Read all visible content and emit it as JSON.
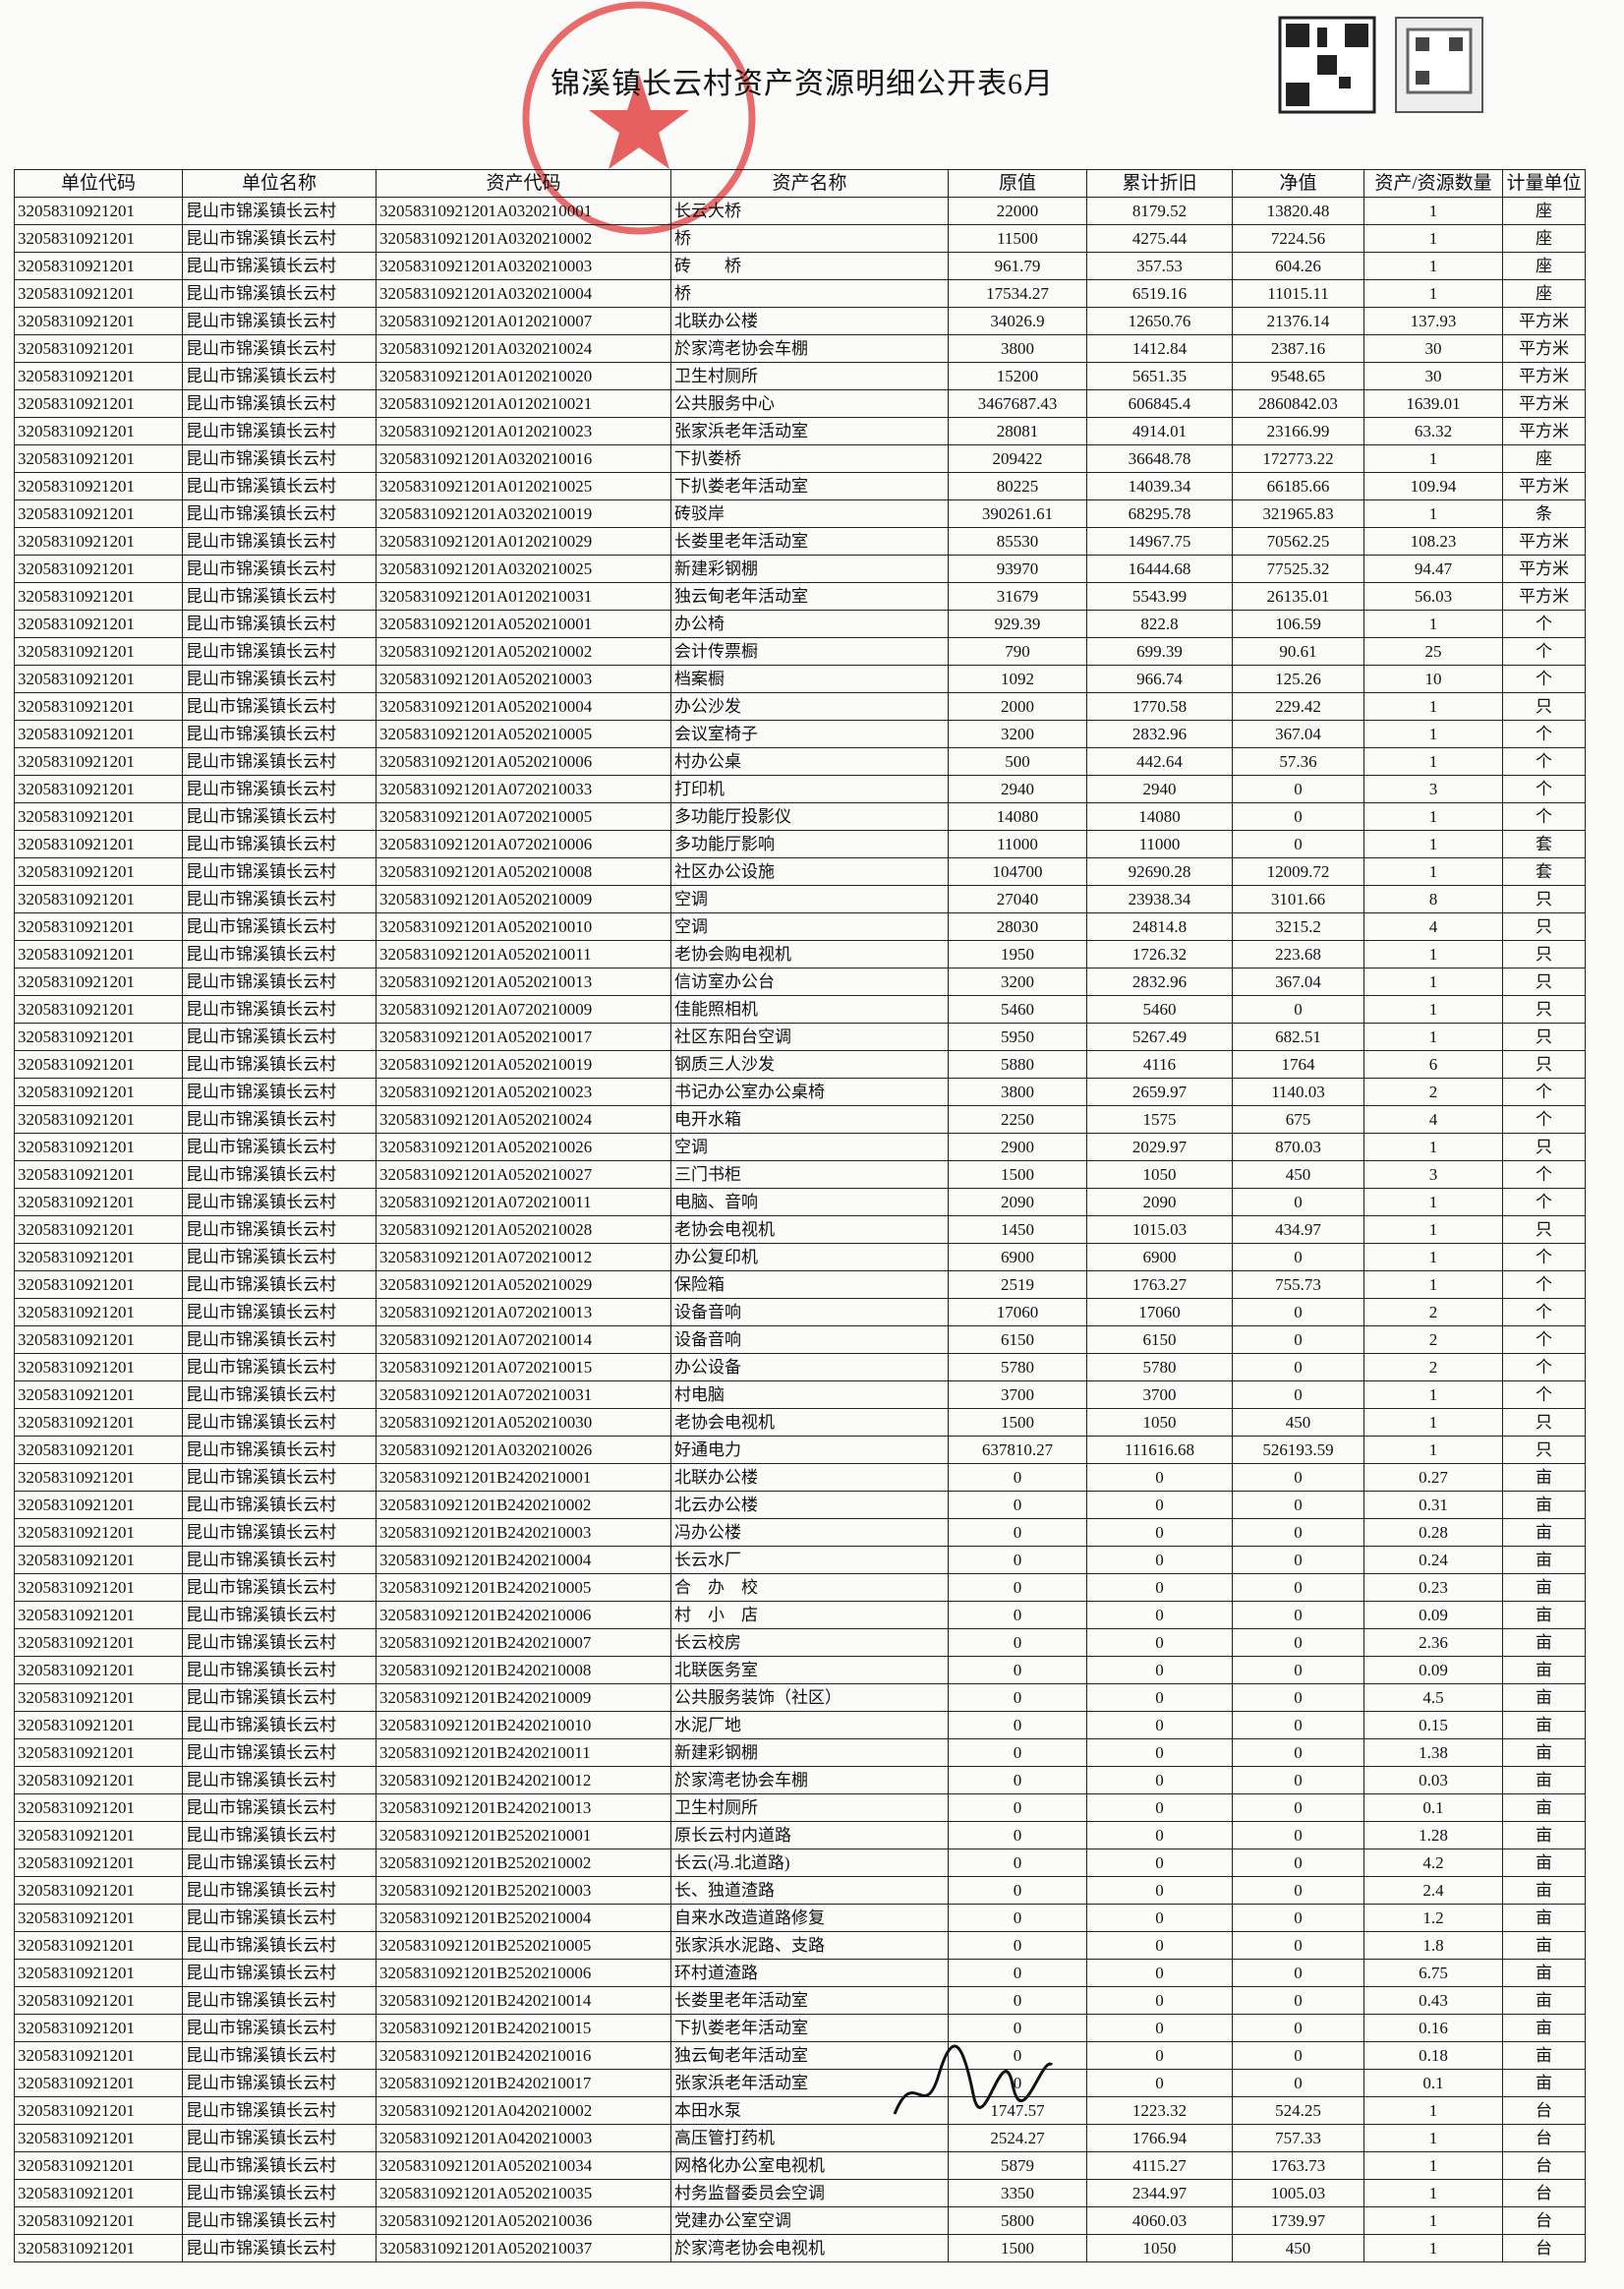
{
  "title": "锦溪镇长云村资产资源明细公开表6月",
  "table": {
    "headers": [
      "单位代码",
      "单位名称",
      "资产代码",
      "资产名称",
      "原值",
      "累计折旧",
      "净值",
      "资产/资源数量",
      "计量单位"
    ],
    "rows": [
      [
        "32058310921201",
        "昆山市锦溪镇长云村",
        "32058310921201A0320210001",
        "长云大桥",
        22000,
        8179.52,
        13820.48,
        1,
        "座"
      ],
      [
        "32058310921201",
        "昆山市锦溪镇长云村",
        "32058310921201A0320210002",
        "桥",
        11500,
        4275.44,
        7224.56,
        1,
        "座"
      ],
      [
        "32058310921201",
        "昆山市锦溪镇长云村",
        "32058310921201A0320210003",
        "砖　　桥",
        961.79,
        357.53,
        604.26,
        1,
        "座"
      ],
      [
        "32058310921201",
        "昆山市锦溪镇长云村",
        "32058310921201A0320210004",
        "桥",
        17534.27,
        6519.16,
        11015.11,
        1,
        "座"
      ],
      [
        "32058310921201",
        "昆山市锦溪镇长云村",
        "32058310921201A0120210007",
        "北联办公楼",
        34026.9,
        12650.76,
        21376.14,
        137.93,
        "平方米"
      ],
      [
        "32058310921201",
        "昆山市锦溪镇长云村",
        "32058310921201A0320210024",
        "於家湾老协会车棚",
        3800,
        1412.84,
        2387.16,
        30,
        "平方米"
      ],
      [
        "32058310921201",
        "昆山市锦溪镇长云村",
        "32058310921201A0120210020",
        "卫生村厕所",
        15200,
        5651.35,
        9548.65,
        30,
        "平方米"
      ],
      [
        "32058310921201",
        "昆山市锦溪镇长云村",
        "32058310921201A0120210021",
        "公共服务中心",
        3467687.43,
        606845.4,
        2860842.03,
        1639.01,
        "平方米"
      ],
      [
        "32058310921201",
        "昆山市锦溪镇长云村",
        "32058310921201A0120210023",
        "张家浜老年活动室",
        28081,
        4914.01,
        23166.99,
        63.32,
        "平方米"
      ],
      [
        "32058310921201",
        "昆山市锦溪镇长云村",
        "32058310921201A0320210016",
        "下扒娄桥",
        209422,
        36648.78,
        172773.22,
        1,
        "座"
      ],
      [
        "32058310921201",
        "昆山市锦溪镇长云村",
        "32058310921201A0120210025",
        "下扒娄老年活动室",
        80225,
        14039.34,
        66185.66,
        109.94,
        "平方米"
      ],
      [
        "32058310921201",
        "昆山市锦溪镇长云村",
        "32058310921201A0320210019",
        "砖驳岸",
        390261.61,
        68295.78,
        321965.83,
        1,
        "条"
      ],
      [
        "32058310921201",
        "昆山市锦溪镇长云村",
        "32058310921201A0120210029",
        "长娄里老年活动室",
        85530,
        14967.75,
        70562.25,
        108.23,
        "平方米"
      ],
      [
        "32058310921201",
        "昆山市锦溪镇长云村",
        "32058310921201A0320210025",
        "新建彩钢棚",
        93970,
        16444.68,
        77525.32,
        94.47,
        "平方米"
      ],
      [
        "32058310921201",
        "昆山市锦溪镇长云村",
        "32058310921201A0120210031",
        "独云甸老年活动室",
        31679,
        5543.99,
        26135.01,
        56.03,
        "平方米"
      ],
      [
        "32058310921201",
        "昆山市锦溪镇长云村",
        "32058310921201A0520210001",
        "办公椅",
        929.39,
        822.8,
        106.59,
        1,
        "个"
      ],
      [
        "32058310921201",
        "昆山市锦溪镇长云村",
        "32058310921201A0520210002",
        "会计传票橱",
        790,
        699.39,
        90.61,
        25,
        "个"
      ],
      [
        "32058310921201",
        "昆山市锦溪镇长云村",
        "32058310921201A0520210003",
        "档案橱",
        1092,
        966.74,
        125.26,
        10,
        "个"
      ],
      [
        "32058310921201",
        "昆山市锦溪镇长云村",
        "32058310921201A0520210004",
        "办公沙发",
        2000,
        1770.58,
        229.42,
        1,
        "只"
      ],
      [
        "32058310921201",
        "昆山市锦溪镇长云村",
        "32058310921201A0520210005",
        "会议室椅子",
        3200,
        2832.96,
        367.04,
        1,
        "个"
      ],
      [
        "32058310921201",
        "昆山市锦溪镇长云村",
        "32058310921201A0520210006",
        "村办公桌",
        500,
        442.64,
        57.36,
        1,
        "个"
      ],
      [
        "32058310921201",
        "昆山市锦溪镇长云村",
        "32058310921201A0720210033",
        "打印机",
        2940,
        2940,
        0,
        3,
        "个"
      ],
      [
        "32058310921201",
        "昆山市锦溪镇长云村",
        "32058310921201A0720210005",
        "多功能厅投影仪",
        14080,
        14080,
        0,
        1,
        "个"
      ],
      [
        "32058310921201",
        "昆山市锦溪镇长云村",
        "32058310921201A0720210006",
        "多功能厅影响",
        11000,
        11000,
        0,
        1,
        "套"
      ],
      [
        "32058310921201",
        "昆山市锦溪镇长云村",
        "32058310921201A0520210008",
        "社区办公设施",
        104700,
        92690.28,
        12009.72,
        1,
        "套"
      ],
      [
        "32058310921201",
        "昆山市锦溪镇长云村",
        "32058310921201A0520210009",
        "空调",
        27040,
        23938.34,
        3101.66,
        8,
        "只"
      ],
      [
        "32058310921201",
        "昆山市锦溪镇长云村",
        "32058310921201A0520210010",
        "空调",
        28030,
        24814.8,
        3215.2,
        4,
        "只"
      ],
      [
        "32058310921201",
        "昆山市锦溪镇长云村",
        "32058310921201A0520210011",
        "老协会购电视机",
        1950,
        1726.32,
        223.68,
        1,
        "只"
      ],
      [
        "32058310921201",
        "昆山市锦溪镇长云村",
        "32058310921201A0520210013",
        "信访室办公台",
        3200,
        2832.96,
        367.04,
        1,
        "只"
      ],
      [
        "32058310921201",
        "昆山市锦溪镇长云村",
        "32058310921201A0720210009",
        "佳能照相机",
        5460,
        5460,
        0,
        1,
        "只"
      ],
      [
        "32058310921201",
        "昆山市锦溪镇长云村",
        "32058310921201A0520210017",
        "社区东阳台空调",
        5950,
        5267.49,
        682.51,
        1,
        "只"
      ],
      [
        "32058310921201",
        "昆山市锦溪镇长云村",
        "32058310921201A0520210019",
        "钢质三人沙发",
        5880,
        4116,
        1764,
        6,
        "只"
      ],
      [
        "32058310921201",
        "昆山市锦溪镇长云村",
        "32058310921201A0520210023",
        "书记办公室办公桌椅",
        3800,
        2659.97,
        1140.03,
        2,
        "个"
      ],
      [
        "32058310921201",
        "昆山市锦溪镇长云村",
        "32058310921201A0520210024",
        "电开水箱",
        2250,
        1575,
        675,
        4,
        "个"
      ],
      [
        "32058310921201",
        "昆山市锦溪镇长云村",
        "32058310921201A0520210026",
        "空调",
        2900,
        2029.97,
        870.03,
        1,
        "只"
      ],
      [
        "32058310921201",
        "昆山市锦溪镇长云村",
        "32058310921201A0520210027",
        "三门书柜",
        1500,
        1050,
        450,
        3,
        "个"
      ],
      [
        "32058310921201",
        "昆山市锦溪镇长云村",
        "32058310921201A0720210011",
        "电脑、音响",
        2090,
        2090,
        0,
        1,
        "个"
      ],
      [
        "32058310921201",
        "昆山市锦溪镇长云村",
        "32058310921201A0520210028",
        "老协会电视机",
        1450,
        1015.03,
        434.97,
        1,
        "只"
      ],
      [
        "32058310921201",
        "昆山市锦溪镇长云村",
        "32058310921201A0720210012",
        "办公复印机",
        6900,
        6900,
        0,
        1,
        "个"
      ],
      [
        "32058310921201",
        "昆山市锦溪镇长云村",
        "32058310921201A0520210029",
        "保险箱",
        2519,
        1763.27,
        755.73,
        1,
        "个"
      ],
      [
        "32058310921201",
        "昆山市锦溪镇长云村",
        "32058310921201A0720210013",
        "设备音响",
        17060,
        17060,
        0,
        2,
        "个"
      ],
      [
        "32058310921201",
        "昆山市锦溪镇长云村",
        "32058310921201A0720210014",
        "设备音响",
        6150,
        6150,
        0,
        2,
        "个"
      ],
      [
        "32058310921201",
        "昆山市锦溪镇长云村",
        "32058310921201A0720210015",
        "办公设备",
        5780,
        5780,
        0,
        2,
        "个"
      ],
      [
        "32058310921201",
        "昆山市锦溪镇长云村",
        "32058310921201A0720210031",
        "村电脑",
        3700,
        3700,
        0,
        1,
        "个"
      ],
      [
        "32058310921201",
        "昆山市锦溪镇长云村",
        "32058310921201A0520210030",
        "老协会电视机",
        1500,
        1050,
        450,
        1,
        "只"
      ],
      [
        "32058310921201",
        "昆山市锦溪镇长云村",
        "32058310921201A0320210026",
        "好通电力",
        637810.27,
        111616.68,
        526193.59,
        1,
        "只"
      ],
      [
        "32058310921201",
        "昆山市锦溪镇长云村",
        "32058310921201B2420210001",
        "北联办公楼",
        0,
        0,
        0,
        0.27,
        "亩"
      ],
      [
        "32058310921201",
        "昆山市锦溪镇长云村",
        "32058310921201B2420210002",
        "北云办公楼",
        0,
        0,
        0,
        0.31,
        "亩"
      ],
      [
        "32058310921201",
        "昆山市锦溪镇长云村",
        "32058310921201B2420210003",
        "冯办公楼",
        0,
        0,
        0,
        0.28,
        "亩"
      ],
      [
        "32058310921201",
        "昆山市锦溪镇长云村",
        "32058310921201B2420210004",
        "长云水厂",
        0,
        0,
        0,
        0.24,
        "亩"
      ],
      [
        "32058310921201",
        "昆山市锦溪镇长云村",
        "32058310921201B2420210005",
        "合　办　校",
        0,
        0,
        0,
        0.23,
        "亩"
      ],
      [
        "32058310921201",
        "昆山市锦溪镇长云村",
        "32058310921201B2420210006",
        "村　小　店",
        0,
        0,
        0,
        0.09,
        "亩"
      ],
      [
        "32058310921201",
        "昆山市锦溪镇长云村",
        "32058310921201B2420210007",
        "长云校房",
        0,
        0,
        0,
        2.36,
        "亩"
      ],
      [
        "32058310921201",
        "昆山市锦溪镇长云村",
        "32058310921201B2420210008",
        "北联医务室",
        0,
        0,
        0,
        0.09,
        "亩"
      ],
      [
        "32058310921201",
        "昆山市锦溪镇长云村",
        "32058310921201B2420210009",
        "公共服务装饰（社区）",
        0,
        0,
        0,
        4.5,
        "亩"
      ],
      [
        "32058310921201",
        "昆山市锦溪镇长云村",
        "32058310921201B2420210010",
        "水泥厂地",
        0,
        0,
        0,
        0.15,
        "亩"
      ],
      [
        "32058310921201",
        "昆山市锦溪镇长云村",
        "32058310921201B2420210011",
        "新建彩钢棚",
        0,
        0,
        0,
        1.38,
        "亩"
      ],
      [
        "32058310921201",
        "昆山市锦溪镇长云村",
        "32058310921201B2420210012",
        "於家湾老协会车棚",
        0,
        0,
        0,
        0.03,
        "亩"
      ],
      [
        "32058310921201",
        "昆山市锦溪镇长云村",
        "32058310921201B2420210013",
        "卫生村厕所",
        0,
        0,
        0,
        0.1,
        "亩"
      ],
      [
        "32058310921201",
        "昆山市锦溪镇长云村",
        "32058310921201B2520210001",
        "原长云村内道路",
        0,
        0,
        0,
        1.28,
        "亩"
      ],
      [
        "32058310921201",
        "昆山市锦溪镇长云村",
        "32058310921201B2520210002",
        "长云(冯.北道路)",
        0,
        0,
        0,
        4.2,
        "亩"
      ],
      [
        "32058310921201",
        "昆山市锦溪镇长云村",
        "32058310921201B2520210003",
        "长、独道渣路",
        0,
        0,
        0,
        2.4,
        "亩"
      ],
      [
        "32058310921201",
        "昆山市锦溪镇长云村",
        "32058310921201B2520210004",
        "自来水改造道路修复",
        0,
        0,
        0,
        1.2,
        "亩"
      ],
      [
        "32058310921201",
        "昆山市锦溪镇长云村",
        "32058310921201B2520210005",
        "张家浜水泥路、支路",
        0,
        0,
        0,
        1.8,
        "亩"
      ],
      [
        "32058310921201",
        "昆山市锦溪镇长云村",
        "32058310921201B2520210006",
        "环村道渣路",
        0,
        0,
        0,
        6.75,
        "亩"
      ],
      [
        "32058310921201",
        "昆山市锦溪镇长云村",
        "32058310921201B2420210014",
        "长娄里老年活动室",
        0,
        0,
        0,
        0.43,
        "亩"
      ],
      [
        "32058310921201",
        "昆山市锦溪镇长云村",
        "32058310921201B2420210015",
        "下扒娄老年活动室",
        0,
        0,
        0,
        0.16,
        "亩"
      ],
      [
        "32058310921201",
        "昆山市锦溪镇长云村",
        "32058310921201B2420210016",
        "独云甸老年活动室",
        0,
        0,
        0,
        0.18,
        "亩"
      ],
      [
        "32058310921201",
        "昆山市锦溪镇长云村",
        "32058310921201B2420210017",
        "张家浜老年活动室",
        0,
        0,
        0,
        0.1,
        "亩"
      ],
      [
        "32058310921201",
        "昆山市锦溪镇长云村",
        "32058310921201A0420210002",
        "本田水泵",
        1747.57,
        1223.32,
        524.25,
        1,
        "台"
      ],
      [
        "32058310921201",
        "昆山市锦溪镇长云村",
        "32058310921201A0420210003",
        "高压管打药机",
        2524.27,
        1766.94,
        757.33,
        1,
        "台"
      ],
      [
        "32058310921201",
        "昆山市锦溪镇长云村",
        "32058310921201A0520210034",
        "网格化办公室电视机",
        5879,
        4115.27,
        1763.73,
        1,
        "台"
      ],
      [
        "32058310921201",
        "昆山市锦溪镇长云村",
        "32058310921201A0520210035",
        "村务监督委员会空调",
        3350,
        2344.97,
        1005.03,
        1,
        "台"
      ],
      [
        "32058310921201",
        "昆山市锦溪镇长云村",
        "32058310921201A0520210036",
        "党建办公室空调",
        5800,
        4060.03,
        1739.97,
        1,
        "台"
      ],
      [
        "32058310921201",
        "昆山市锦溪镇长云村",
        "32058310921201A0520210037",
        "於家湾老协会电视机",
        1500,
        1050,
        450,
        1,
        "台"
      ]
    ]
  }
}
